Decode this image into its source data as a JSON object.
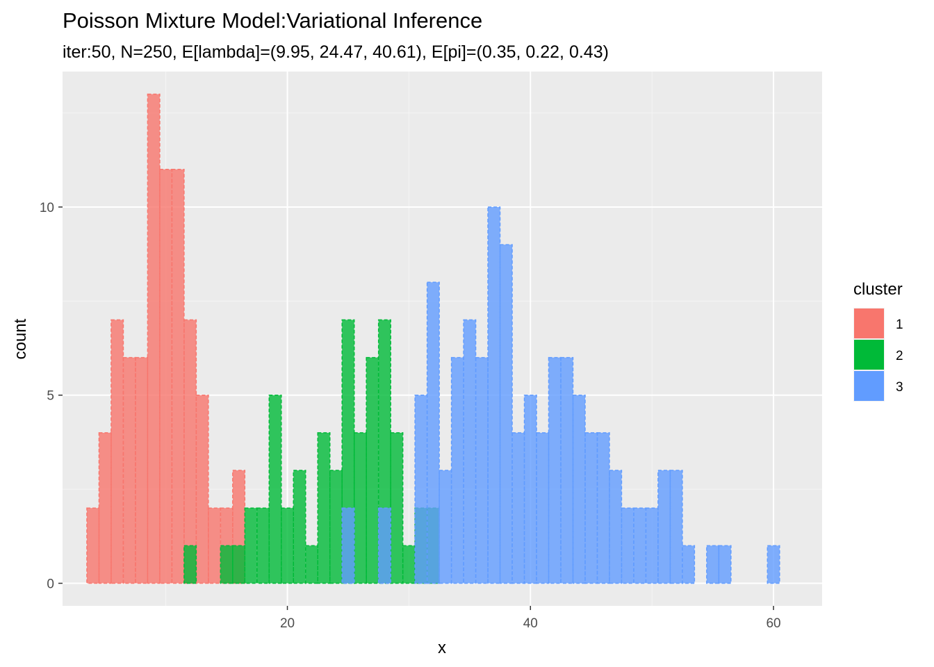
{
  "chart_data": {
    "type": "bar",
    "title": "Poisson Mixture Model:Variational Inference",
    "subtitle": "iter:50, N=250, E[lambda]=(9.95, 24.47, 40.61), E[pi]=(0.35, 0.22, 0.43)",
    "xlabel": "x",
    "ylabel": "count",
    "xlim": [
      1.5,
      64
    ],
    "ylim": [
      -0.6,
      13.6
    ],
    "x_ticks": [
      20,
      40,
      60
    ],
    "y_ticks": [
      0,
      5,
      10
    ],
    "grid": true,
    "legend": {
      "title": "cluster",
      "position": "right"
    },
    "bin_width": 1,
    "series": [
      {
        "name": "1",
        "color": "#F8766D",
        "x": [
          4,
          5,
          6,
          7,
          8,
          9,
          10,
          11,
          12,
          13,
          14,
          15,
          16
        ],
        "values": [
          2,
          4,
          7,
          6,
          6,
          13,
          11,
          11,
          7,
          5,
          2,
          2,
          3
        ]
      },
      {
        "name": "2",
        "color": "#00BA38",
        "x": [
          12,
          15,
          16,
          17,
          18,
          19,
          20,
          21,
          22,
          23,
          24,
          25,
          26,
          27,
          28,
          29,
          30,
          31,
          32
        ],
        "values": [
          1,
          1,
          1,
          2,
          2,
          5,
          2,
          3,
          1,
          4,
          3,
          7,
          4,
          6,
          7,
          4,
          1,
          2,
          2
        ]
      },
      {
        "name": "3",
        "color": "#619CFF",
        "x": [
          25,
          28,
          31,
          32,
          33,
          34,
          35,
          36,
          37,
          38,
          39,
          40,
          41,
          42,
          43,
          44,
          45,
          46,
          47,
          48,
          49,
          50,
          51,
          52,
          53,
          55,
          56,
          60
        ],
        "values": [
          2,
          2,
          5,
          8,
          3,
          6,
          7,
          6,
          10,
          9,
          4,
          5,
          4,
          6,
          6,
          5,
          4,
          4,
          3,
          2,
          2,
          2,
          3,
          3,
          1,
          1,
          1,
          1
        ]
      }
    ]
  }
}
